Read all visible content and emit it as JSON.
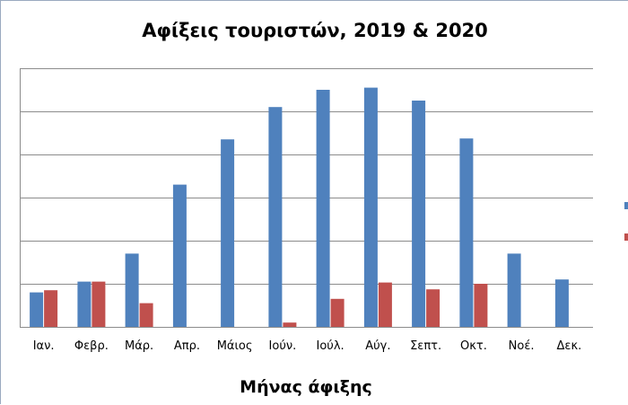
{
  "chart_data": {
    "type": "bar",
    "title": "Αφίξεις τουριστών,  2019 & 2020",
    "xlabel": "Μήνας άφιξης",
    "ylabel": "",
    "categories": [
      "Ιαν.",
      "Φεβρ.",
      "Μάρ.",
      "Απρ.",
      "Μάιος",
      "Ιούν.",
      "Ιούλ.",
      "Αύγ.",
      "Σεπτ.",
      "Οκτ.",
      "Νοέ.",
      "Δεκ."
    ],
    "series": [
      {
        "color": "#4f81bd",
        "values": [
          0.8,
          1.05,
          1.7,
          3.3,
          4.35,
          5.1,
          5.5,
          5.55,
          5.25,
          4.37,
          1.7,
          1.1
        ]
      },
      {
        "color": "#c0504d",
        "values": [
          0.85,
          1.05,
          0.55,
          0,
          0,
          0.1,
          0.65,
          1.03,
          0.87,
          1.0,
          0,
          0
        ]
      }
    ],
    "ylim": [
      0,
      6
    ],
    "yticks_shown": false,
    "grid": true,
    "legend": "right, cut off (only color markers visible)"
  }
}
